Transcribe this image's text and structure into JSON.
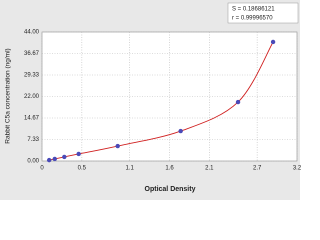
{
  "chart_data": {
    "type": "scatter",
    "x_label": "Optical Density",
    "y_label": "Rabbit C5a concentration (ng/ml)",
    "annotations": [
      "S = 0.18686121",
      "r = 0.99996570"
    ],
    "xlim": [
      0,
      3.2
    ],
    "xticks": [
      0,
      0.5,
      1.1,
      1.6,
      2.1,
      2.7,
      3.2
    ],
    "ylim": [
      0,
      44
    ],
    "yticks": [
      {
        "value": 0,
        "label": "0.00"
      },
      {
        "value": 7.33,
        "label": "7.33"
      },
      {
        "value": 14.67,
        "label": "14.67"
      },
      {
        "value": 22,
        "label": "22.00"
      },
      {
        "value": 29.33,
        "label": "29.33"
      },
      {
        "value": 36.67,
        "label": "36.67"
      },
      {
        "value": 44,
        "label": "44.00"
      }
    ],
    "grid": true,
    "series": [
      {
        "color": "#4a4ab8",
        "line_color": "#d02020",
        "x": [
          0.09,
          0.16,
          0.28,
          0.46,
          0.95,
          1.74,
          2.46,
          2.9
        ],
        "values": [
          0.3,
          0.7,
          1.4,
          2.4,
          5.1,
          10.2,
          20.1,
          40.6
        ]
      }
    ]
  }
}
